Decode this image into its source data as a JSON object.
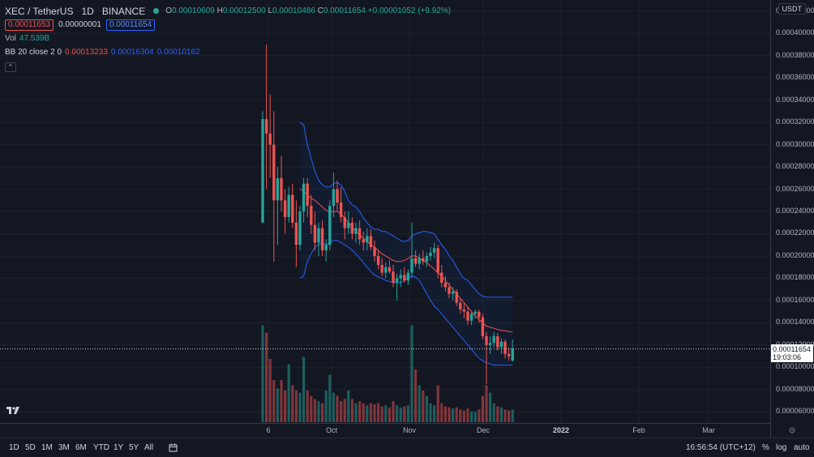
{
  "legend": {
    "symbol": "XEC / TetherUS",
    "interval": "1D",
    "exchange": "BINANCE",
    "ohlc": {
      "o_label": "O",
      "o": "0.00010609",
      "h_label": "H",
      "h": "0.00012500",
      "l_label": "L",
      "l": "0.00010486",
      "c_label": "C",
      "c": "0.00011654",
      "change": "+0.00001052 (+9.92%)"
    },
    "sell_price": "0.00011653",
    "spread": "0.00000001",
    "buy_price": "0.00011654",
    "vol_label": "Vol",
    "vol_value": "47.539B",
    "bb_label": "BB 20 close 2 0",
    "bb_basis": "0.00013233",
    "bb_upper": "0.00016304",
    "bb_lower": "0.00010162",
    "collapse_glyph": "^"
  },
  "price_scale": {
    "currency": "USDT",
    "ticks": [
      "0.00042000",
      "0.00040000",
      "0.00038000",
      "0.00036000",
      "0.00034000",
      "0.00032000",
      "0.00030000",
      "0.00028000",
      "0.00026000",
      "0.00024000",
      "0.00022000",
      "0.00020000",
      "0.00018000",
      "0.00016000",
      "0.00014000",
      "0.00012000",
      "0.00010000",
      "0.00008000",
      "0.00006000"
    ],
    "last_price": "0.00011654",
    "countdown": "19:03:06"
  },
  "time_scale": {
    "ticks": [
      {
        "label": "6",
        "bold": false
      },
      {
        "label": "Oct",
        "bold": false
      },
      {
        "label": "Nov",
        "bold": false
      },
      {
        "label": "Dec",
        "bold": false
      },
      {
        "label": "2022",
        "bold": true
      },
      {
        "label": "Feb",
        "bold": false
      },
      {
        "label": "Mar",
        "bold": false
      }
    ]
  },
  "bottom_bar": {
    "timeframes": [
      "1D",
      "5D",
      "1M",
      "3M",
      "6M",
      "YTD",
      "1Y",
      "5Y",
      "All"
    ],
    "compare_icon": "calendar-range-icon",
    "clock": "16:56:54 (UTC+12)",
    "percent": "%",
    "log": "log",
    "auto": "auto",
    "settings_icon": "gear-icon"
  },
  "colors": {
    "up": "#26a69a",
    "down": "#ef5350",
    "bb_band": "#2962ff",
    "bb_basis": "#ef5350",
    "bg": "#131722"
  },
  "chart_data": {
    "type": "candlestick",
    "title": "XEC / TetherUS 1D BINANCE",
    "ylim": [
      5e-05,
      0.00043
    ],
    "points": [
      {
        "o": 0.00023,
        "h": 0.00033,
        "l": 0.00023,
        "c": 0.000323
      },
      {
        "o": 0.000323,
        "h": 0.00039,
        "l": 0.00026,
        "c": 0.00031
      },
      {
        "o": 0.00031,
        "h": 0.000345,
        "l": 0.00027,
        "c": 0.0003
      },
      {
        "o": 0.0003,
        "h": 0.00033,
        "l": 0.000195,
        "c": 0.00025
      },
      {
        "o": 0.00025,
        "h": 0.00028,
        "l": 0.00021,
        "c": 0.00027
      },
      {
        "o": 0.00027,
        "h": 0.00029,
        "l": 0.00024,
        "c": 0.00025
      },
      {
        "o": 0.00025,
        "h": 0.00026,
        "l": 0.00022,
        "c": 0.000235
      },
      {
        "o": 0.000235,
        "h": 0.000262,
        "l": 0.00023,
        "c": 0.000255
      },
      {
        "o": 0.000255,
        "h": 0.000265,
        "l": 0.000225,
        "c": 0.00023
      },
      {
        "o": 0.00023,
        "h": 0.00025,
        "l": 0.00019,
        "c": 0.00021
      },
      {
        "o": 0.00021,
        "h": 0.000245,
        "l": 0.000205,
        "c": 0.00024
      },
      {
        "o": 0.00024,
        "h": 0.00027,
        "l": 0.00023,
        "c": 0.000265
      },
      {
        "o": 0.000265,
        "h": 0.00027,
        "l": 0.000235,
        "c": 0.000245
      },
      {
        "o": 0.000245,
        "h": 0.000255,
        "l": 0.00022,
        "c": 0.000228
      },
      {
        "o": 0.000228,
        "h": 0.00024,
        "l": 0.000205,
        "c": 0.000212
      },
      {
        "o": 0.000212,
        "h": 0.00023,
        "l": 0.0002,
        "c": 0.000225
      },
      {
        "o": 0.000225,
        "h": 0.000232,
        "l": 0.0002,
        "c": 0.000205
      },
      {
        "o": 0.000205,
        "h": 0.000215,
        "l": 0.000195,
        "c": 0.00021
      },
      {
        "o": 0.00021,
        "h": 0.00025,
        "l": 0.000205,
        "c": 0.000245
      },
      {
        "o": 0.000245,
        "h": 0.000275,
        "l": 0.000235,
        "c": 0.00026
      },
      {
        "o": 0.00026,
        "h": 0.000268,
        "l": 0.00024,
        "c": 0.000248
      },
      {
        "o": 0.000248,
        "h": 0.000262,
        "l": 0.00023,
        "c": 0.000235
      },
      {
        "o": 0.000235,
        "h": 0.00024,
        "l": 0.000215,
        "c": 0.000225
      },
      {
        "o": 0.000225,
        "h": 0.00024,
        "l": 0.00022,
        "c": 0.00023
      },
      {
        "o": 0.00023,
        "h": 0.000235,
        "l": 0.000215,
        "c": 0.00022
      },
      {
        "o": 0.00022,
        "h": 0.00023,
        "l": 0.000212,
        "c": 0.000225
      },
      {
        "o": 0.000225,
        "h": 0.000232,
        "l": 0.00021,
        "c": 0.000215
      },
      {
        "o": 0.000215,
        "h": 0.000222,
        "l": 0.000205,
        "c": 0.000212
      },
      {
        "o": 0.000212,
        "h": 0.000225,
        "l": 0.000205,
        "c": 0.000218
      },
      {
        "o": 0.000218,
        "h": 0.000224,
        "l": 0.000205,
        "c": 0.000208
      },
      {
        "o": 0.000208,
        "h": 0.000214,
        "l": 0.000195,
        "c": 0.0002
      },
      {
        "o": 0.0002,
        "h": 0.000205,
        "l": 0.000188,
        "c": 0.000192
      },
      {
        "o": 0.000192,
        "h": 0.000198,
        "l": 0.000182,
        "c": 0.000185
      },
      {
        "o": 0.000185,
        "h": 0.000194,
        "l": 0.00018,
        "c": 0.00019
      },
      {
        "o": 0.00019,
        "h": 0.000196,
        "l": 0.000184,
        "c": 0.000186
      },
      {
        "o": 0.000186,
        "h": 0.000192,
        "l": 0.000172,
        "c": 0.000176
      },
      {
        "o": 0.000176,
        "h": 0.000184,
        "l": 0.00016,
        "c": 0.00018
      },
      {
        "o": 0.00018,
        "h": 0.000188,
        "l": 0.000172,
        "c": 0.000183
      },
      {
        "o": 0.000183,
        "h": 0.00019,
        "l": 0.000176,
        "c": 0.000178
      },
      {
        "o": 0.000178,
        "h": 0.000188,
        "l": 0.000174,
        "c": 0.000185
      },
      {
        "o": 0.000185,
        "h": 0.00023,
        "l": 0.00018,
        "c": 0.000198
      },
      {
        "o": 0.000198,
        "h": 0.000205,
        "l": 0.00019,
        "c": 0.000193
      },
      {
        "o": 0.000193,
        "h": 0.000202,
        "l": 0.000188,
        "c": 0.000198
      },
      {
        "o": 0.000198,
        "h": 0.000205,
        "l": 0.000192,
        "c": 0.000195
      },
      {
        "o": 0.000195,
        "h": 0.000203,
        "l": 0.00019,
        "c": 0.0002
      },
      {
        "o": 0.0002,
        "h": 0.000208,
        "l": 0.000196,
        "c": 0.000203
      },
      {
        "o": 0.000203,
        "h": 0.000212,
        "l": 0.000198,
        "c": 0.000207
      },
      {
        "o": 0.000207,
        "h": 0.00021,
        "l": 0.00018,
        "c": 0.000185
      },
      {
        "o": 0.000185,
        "h": 0.000192,
        "l": 0.000172,
        "c": 0.000176
      },
      {
        "o": 0.000176,
        "h": 0.000182,
        "l": 0.000168,
        "c": 0.000172
      },
      {
        "o": 0.000172,
        "h": 0.000176,
        "l": 0.000162,
        "c": 0.000166
      },
      {
        "o": 0.000166,
        "h": 0.000172,
        "l": 0.00016,
        "c": 0.000168
      },
      {
        "o": 0.000168,
        "h": 0.00017,
        "l": 0.000155,
        "c": 0.000158
      },
      {
        "o": 0.000158,
        "h": 0.000162,
        "l": 0.000148,
        "c": 0.000152
      },
      {
        "o": 0.000152,
        "h": 0.000158,
        "l": 0.000144,
        "c": 0.00015
      },
      {
        "o": 0.00015,
        "h": 0.000154,
        "l": 0.000138,
        "c": 0.000142
      },
      {
        "o": 0.000142,
        "h": 0.00015,
        "l": 0.000138,
        "c": 0.000148
      },
      {
        "o": 0.000148,
        "h": 0.000152,
        "l": 0.000144,
        "c": 0.00015
      },
      {
        "o": 0.00015,
        "h": 0.000152,
        "l": 0.00014,
        "c": 0.000145
      },
      {
        "o": 0.000145,
        "h": 0.000148,
        "l": 0.000125,
        "c": 0.000128
      },
      {
        "o": 0.000128,
        "h": 0.000132,
        "l": 8.5e-05,
        "c": 0.00012
      },
      {
        "o": 0.00012,
        "h": 0.000128,
        "l": 0.000112,
        "c": 0.000122
      },
      {
        "o": 0.000122,
        "h": 0.000132,
        "l": 0.000118,
        "c": 0.000128
      },
      {
        "o": 0.000128,
        "h": 0.000131,
        "l": 0.000115,
        "c": 0.000118
      },
      {
        "o": 0.000118,
        "h": 0.000126,
        "l": 0.000112,
        "c": 0.000123
      },
      {
        "o": 0.000123,
        "h": 0.000125,
        "l": 0.000108,
        "c": 0.000112
      },
      {
        "o": 0.000112,
        "h": 0.000118,
        "l": 0.000106,
        "c": 0.00011
      },
      {
        "o": 0.000106,
        "h": 0.000125,
        "l": 0.000105,
        "c": 0.000117
      }
    ],
    "volume_max": 1,
    "volume": [
      0.92,
      0.85,
      0.6,
      0.4,
      0.32,
      0.4,
      0.3,
      0.55,
      0.35,
      0.3,
      0.28,
      0.62,
      0.3,
      0.25,
      0.22,
      0.2,
      0.18,
      0.3,
      0.45,
      0.28,
      0.25,
      0.2,
      0.22,
      0.3,
      0.22,
      0.18,
      0.2,
      0.18,
      0.16,
      0.18,
      0.17,
      0.18,
      0.15,
      0.16,
      0.14,
      0.2,
      0.16,
      0.14,
      0.15,
      0.16,
      0.92,
      0.5,
      0.35,
      0.3,
      0.25,
      0.18,
      0.16,
      0.35,
      0.18,
      0.15,
      0.14,
      0.13,
      0.14,
      0.12,
      0.11,
      0.13,
      0.1,
      0.1,
      0.12,
      0.25,
      0.35,
      0.28,
      0.18,
      0.15,
      0.14,
      0.12,
      0.11,
      0.12
    ],
    "bb": {
      "start_index": 10,
      "upper": [
        0.00032,
        0.000318,
        0.0003,
        0.000288,
        0.000276,
        0.000268,
        0.000264,
        0.000262,
        0.000262,
        0.000265,
        0.000266,
        0.000264,
        0.000258,
        0.00025,
        0.000246,
        0.000244,
        0.00024,
        0.000234,
        0.00023,
        0.000226,
        0.000224,
        0.000224,
        0.000222,
        0.000222,
        0.00022,
        0.000218,
        0.000216,
        0.000214,
        0.000213,
        0.000214,
        0.000218,
        0.00022,
        0.000221,
        0.000222,
        0.000222,
        0.000221,
        0.00022,
        0.000215,
        0.00021,
        0.000206,
        0.0002,
        0.000196,
        0.00019,
        0.000184,
        0.00018,
        0.000178,
        0.000174,
        0.00017,
        0.000166,
        0.000164,
        0.000163,
        0.000163,
        0.000163,
        0.000163,
        0.000163,
        0.000163,
        0.000163,
        0.000163
      ],
      "basis": [
        0.00026,
        0.000258,
        0.000255,
        0.000252,
        0.00025,
        0.000247,
        0.000244,
        0.000241,
        0.00024,
        0.00024,
        0.00024,
        0.000238,
        0.000234,
        0.00023,
        0.000226,
        0.000222,
        0.000219,
        0.000216,
        0.000213,
        0.00021,
        0.000208,
        0.000205,
        0.000202,
        0.0002,
        0.000198,
        0.000196,
        0.000195,
        0.000195,
        0.000196,
        0.000198,
        0.0002,
        0.0002,
        0.000198,
        0.000196,
        0.000194,
        0.000191,
        0.000188,
        0.000185,
        0.000182,
        0.000178,
        0.000174,
        0.00017,
        0.000166,
        0.000162,
        0.000158,
        0.000154,
        0.00015,
        0.000146,
        0.000143,
        0.00014,
        0.000137,
        0.000136,
        0.000135,
        0.000134,
        0.000133,
        0.000133,
        0.000132,
        0.000132
      ],
      "lower": [
        0.00018,
        0.000182,
        0.000195,
        0.000202,
        0.000208,
        0.00021,
        0.000212,
        0.00021,
        0.000212,
        0.000214,
        0.000214,
        0.000212,
        0.00021,
        0.000208,
        0.000205,
        0.000202,
        0.000198,
        0.000194,
        0.00019,
        0.000186,
        0.000183,
        0.000181,
        0.00018,
        0.000178,
        0.000177,
        0.000176,
        0.000176,
        0.000176,
        0.000178,
        0.00018,
        0.000182,
        0.000181,
        0.000178,
        0.000172,
        0.000166,
        0.00016,
        0.000155,
        0.000152,
        0.000148,
        0.000144,
        0.00014,
        0.000136,
        0.000132,
        0.000128,
        0.000124,
        0.00012,
        0.000116,
        0.000112,
        0.000108,
        0.000106,
        0.000104,
        0.000103,
        0.000102,
        0.000102,
        0.000102,
        0.000102,
        0.000102,
        0.000102
      ]
    }
  }
}
